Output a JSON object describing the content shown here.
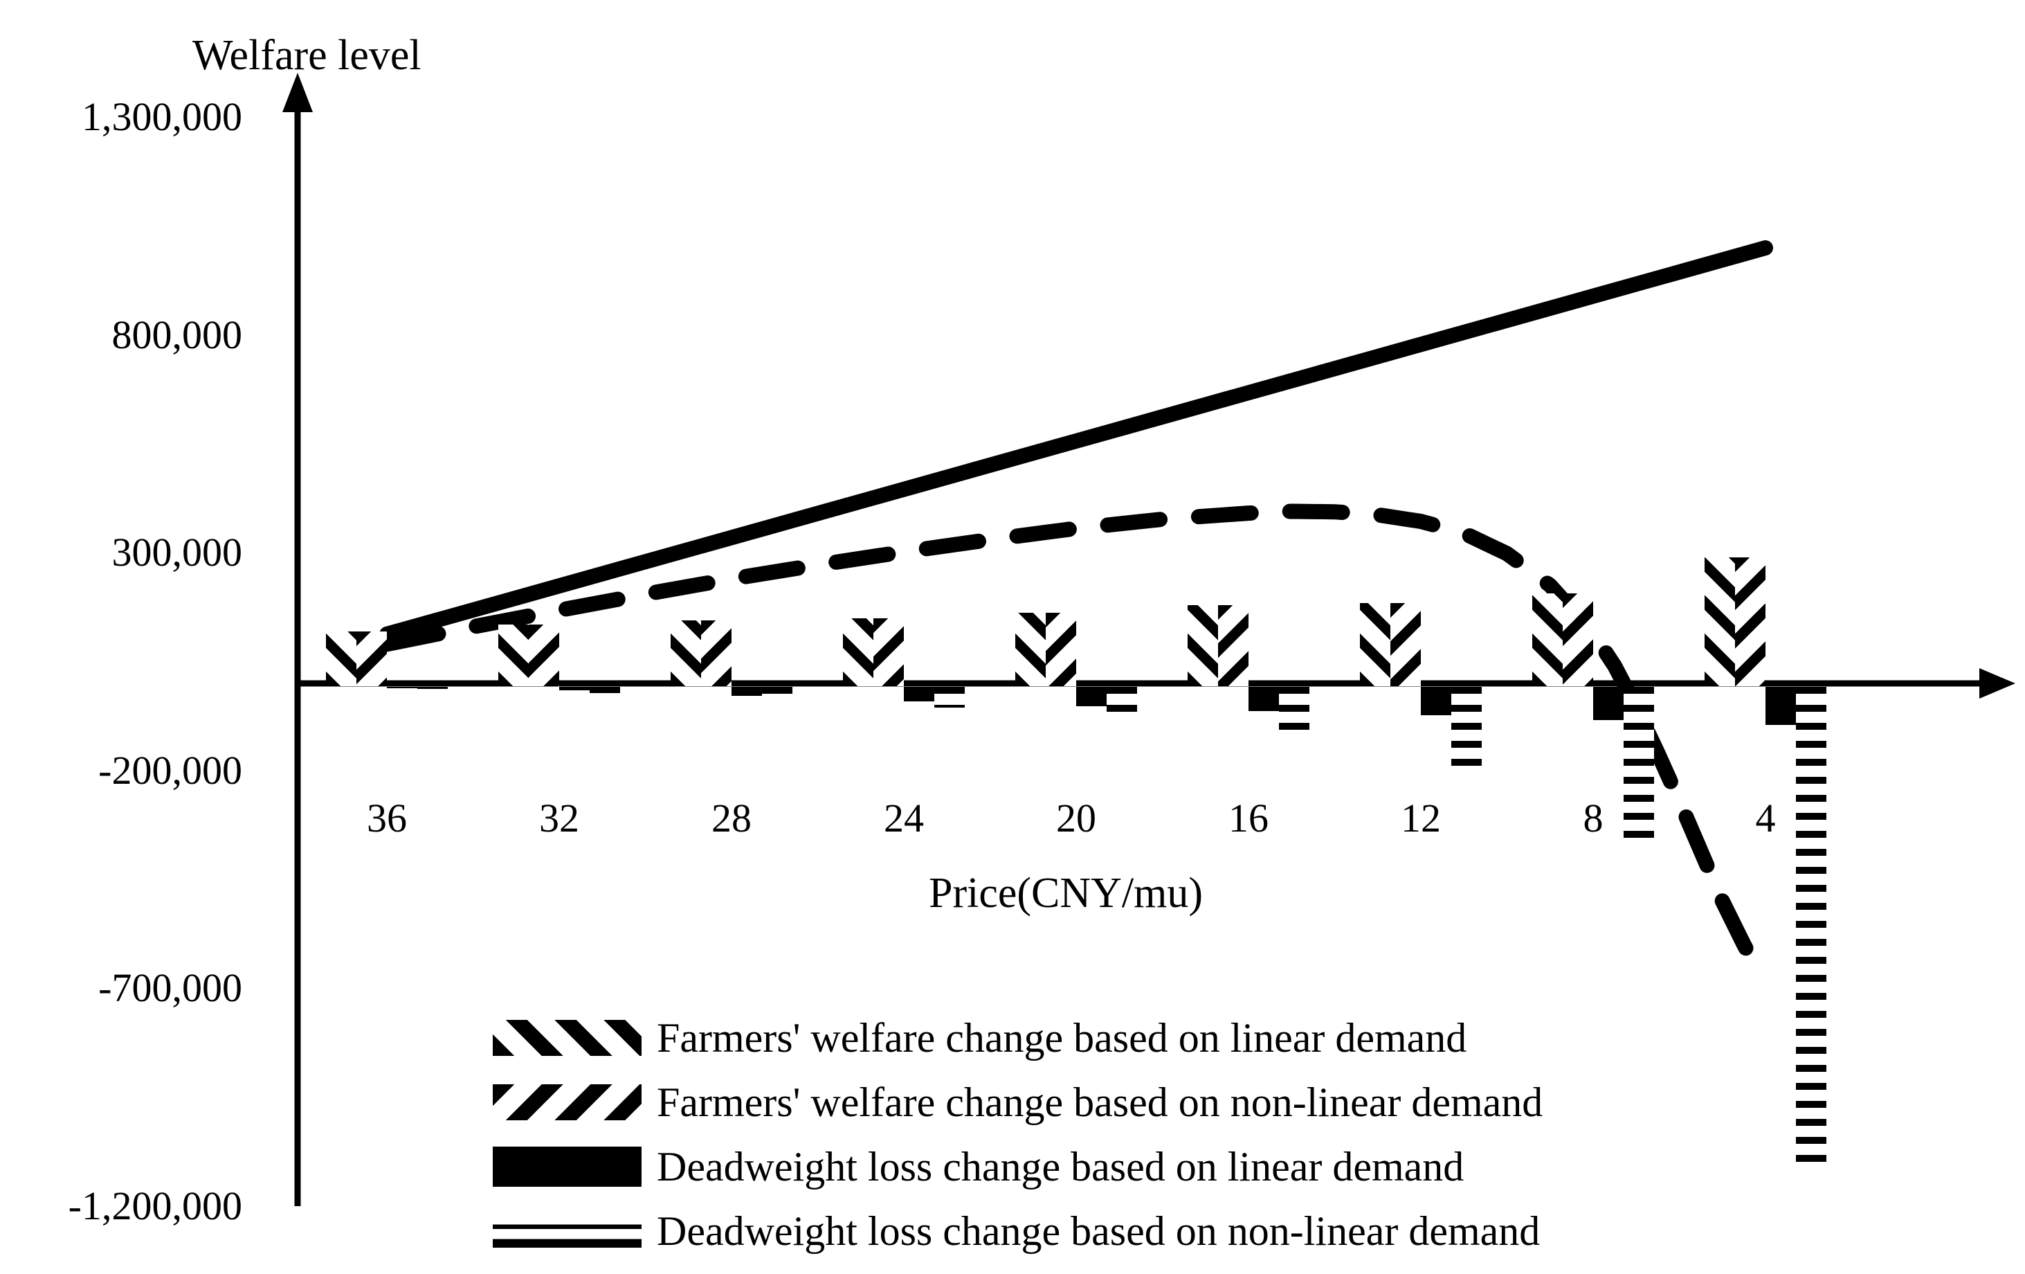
{
  "chart_data": {
    "type": "bar",
    "subtype": "grouped bars with overlaid lines",
    "title": "",
    "ylabel": "Welfare level",
    "xlabel": "Price(CNY/mu)",
    "grid": false,
    "ylim": [
      -1200000,
      1300000
    ],
    "y_ticks": [
      {
        "value": 1300000,
        "label": "1,300,000"
      },
      {
        "value": 800000,
        "label": "800,000"
      },
      {
        "value": 300000,
        "label": "300,000"
      },
      {
        "value": -200000,
        "label": "-200,000"
      },
      {
        "value": -700000,
        "label": "-700,000"
      },
      {
        "value": -1200000,
        "label": "-1,200,000"
      }
    ],
    "categories": [
      36,
      32,
      28,
      24,
      20,
      16,
      12,
      8,
      4
    ],
    "series": [
      {
        "name": "Farmers' welfare change based on linear demand",
        "style": "bar-hatch-backslash",
        "values": [
          120000,
          135000,
          145000,
          150000,
          162000,
          180000,
          185000,
          207000,
          290000
        ]
      },
      {
        "name": "Farmers' welfare change based on non-linear demand",
        "style": "bar-hatch-forwardslash",
        "values": [
          120000,
          135000,
          145000,
          150000,
          162000,
          180000,
          185000,
          207000,
          290000
        ]
      },
      {
        "name": "Deadweight loss change based on linear demand",
        "style": "bar-solid-black",
        "values": [
          -8000,
          -16000,
          -28000,
          -41000,
          -52000,
          -63000,
          -73000,
          -85000,
          -95000
        ]
      },
      {
        "name": "Deadweight loss change based on non-linear demand",
        "style": "bar-horizontal-stripes",
        "values": [
          -12000,
          -22000,
          -35000,
          -55000,
          -80000,
          -115000,
          -195000,
          -380000,
          -1100000
        ]
      }
    ],
    "lines": [
      {
        "name": "welfare trend based on linear demand",
        "style": "solid-thick",
        "points": [
          [
            36,
            113000
          ],
          [
            4,
            1000000
          ]
        ]
      },
      {
        "name": "welfare trend based on non-linear demand",
        "style": "dashed-thick",
        "points": [
          [
            36,
            90000
          ],
          [
            34,
            130000
          ],
          [
            32,
            168000
          ],
          [
            30,
            205000
          ],
          [
            28,
            240000
          ],
          [
            26,
            272000
          ],
          [
            24,
            302000
          ],
          [
            22,
            330000
          ],
          [
            20,
            356000
          ],
          [
            18,
            377000
          ],
          [
            16,
            391000
          ],
          [
            15,
            395000
          ],
          [
            14,
            394000
          ],
          [
            13,
            387000
          ],
          [
            12,
            372000
          ],
          [
            11,
            345000
          ],
          [
            10,
            298000
          ],
          [
            9,
            225000
          ],
          [
            8,
            115000
          ],
          [
            7.5,
            40000
          ],
          [
            7,
            -55000
          ],
          [
            6.5,
            -160000
          ],
          [
            6,
            -270000
          ],
          [
            5.5,
            -385000
          ],
          [
            5,
            -500000
          ],
          [
            4.5,
            -600000
          ],
          [
            4.2,
            -655000
          ]
        ]
      }
    ],
    "legend_position": "bottom-center"
  },
  "labels": {
    "y_axis_title": "Welfare level",
    "x_axis_title": "Price(CNY/mu)"
  },
  "legend": {
    "items": [
      {
        "label": "Farmers' welfare change based on linear demand"
      },
      {
        "label": "Farmers' welfare change based on non-linear demand"
      },
      {
        "label": "Deadweight loss change based on linear demand"
      },
      {
        "label": "Deadweight loss change based on non-linear demand"
      }
    ]
  },
  "colors": {
    "ink": "#000000",
    "background": "#ffffff"
  }
}
